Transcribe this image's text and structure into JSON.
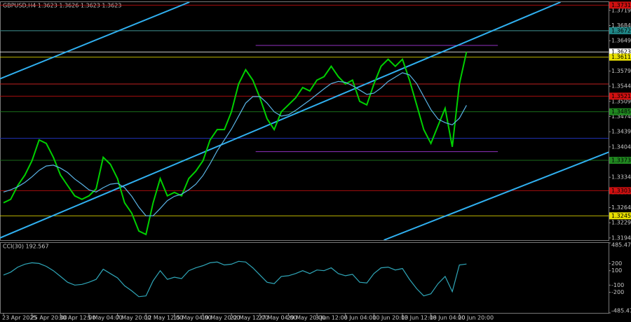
{
  "chart_data": [
    {
      "type": "line",
      "title": "GBPUSD,H4  1.3623 1.3626 1.3623 1.3623",
      "categories": [
        "23 Apr 2025",
        null,
        null,
        null,
        "25 Apr 20:00",
        null,
        null,
        null,
        "30 Apr 12:00",
        null,
        null,
        null,
        "5 May 04:00",
        null,
        null,
        null,
        "7 May 20:00",
        null,
        null,
        null,
        "12 May 12:00",
        null,
        null,
        null,
        "15 May 04:00",
        null,
        null,
        null,
        "19 May 20:00",
        null,
        null,
        null,
        "22 May 12:00",
        null,
        null,
        null,
        "27 May 04:00",
        null,
        null,
        null,
        "29 May 20:00",
        null,
        null,
        null,
        "3 Jun 12:00",
        null,
        null,
        null,
        "6 Jun 04:00",
        null,
        null,
        null,
        "10 Jun 20:00",
        null,
        null,
        null,
        "13 Jun 12:00",
        null,
        null,
        null,
        "18 Jun 04:00",
        null,
        null,
        null,
        "20 Jun 20:00",
        null
      ],
      "series": [
        {
          "name": "GBPUSD",
          "color": "#00d000",
          "values": [
            1.3275,
            1.3283,
            1.3315,
            1.3339,
            1.3372,
            1.342,
            1.3412,
            1.338,
            1.3339,
            1.3315,
            1.3291,
            1.3283,
            1.3291,
            1.3307,
            1.338,
            1.3364,
            1.3331,
            1.3275,
            1.3251,
            1.321,
            1.3202,
            1.3275,
            1.3331,
            1.3291,
            1.3299,
            1.3291,
            1.3331,
            1.3348,
            1.3372,
            1.342,
            1.3444,
            1.3444,
            1.3485,
            1.3549,
            1.3582,
            1.3558,
            1.3517,
            1.3469,
            1.3444,
            1.3485,
            1.3501,
            1.3517,
            1.3541,
            1.3533,
            1.3558,
            1.3566,
            1.359,
            1.3566,
            1.3549,
            1.3558,
            1.3509,
            1.3501,
            1.3549,
            1.359,
            1.3606,
            1.359,
            1.3606,
            1.3558,
            1.3501,
            1.3444,
            1.3412,
            1.3453,
            1.3493,
            1.3404,
            1.3549,
            1.3623
          ]
        },
        {
          "name": "MA",
          "color": "#5ab4e6",
          "values": [
            1.33,
            1.3305,
            1.3312,
            1.3322,
            1.3335,
            1.335,
            1.336,
            1.3362,
            1.3355,
            1.3345,
            1.333,
            1.3318,
            1.3305,
            1.33,
            1.331,
            1.3318,
            1.332,
            1.331,
            1.329,
            1.3265,
            1.3245,
            1.3245,
            1.3262,
            1.328,
            1.329,
            1.3295,
            1.3305,
            1.3318,
            1.3338,
            1.3365,
            1.3395,
            1.342,
            1.3445,
            1.3475,
            1.3505,
            1.352,
            1.352,
            1.3505,
            1.3485,
            1.3475,
            1.3478,
            1.3488,
            1.35,
            1.3512,
            1.3525,
            1.3538,
            1.355,
            1.3555,
            1.3553,
            1.3545,
            1.3535,
            1.3525,
            1.3528,
            1.354,
            1.3555,
            1.3565,
            1.3575,
            1.357,
            1.355,
            1.352,
            1.349,
            1.3468,
            1.346,
            1.3455,
            1.347,
            1.35
          ]
        }
      ],
      "ylim": [
        1.3189,
        1.3738
      ],
      "yticks": [
        1.3719,
        1.3684,
        1.3649,
        1.3614,
        1.3579,
        1.3544,
        1.3509,
        1.3474,
        1.3439,
        1.3404,
        1.3369,
        1.3334,
        1.3299,
        1.3264,
        1.3229,
        1.3194
      ],
      "channel": {
        "color": "#30b0f0",
        "lines": [
          {
            "x": [
              -0.5,
              26.1
            ],
            "y": [
              1.3561,
              1.3738
            ]
          },
          {
            "x": [
              -0.5,
              78.2
            ],
            "y": [
              1.3194,
              1.3738
            ]
          },
          {
            "x": [
              53.4,
              88.1
            ],
            "y": [
              1.3189,
              1.3412
            ]
          }
        ]
      },
      "guides": [
        {
          "value": 1.3672,
          "color": "#707070"
        },
        {
          "value": 1.3638,
          "color": "#9030c0",
          "x": [
            35.4,
            69.4
          ]
        },
        {
          "value": 1.3549,
          "color": "#c02020"
        },
        {
          "value": 1.3424,
          "color": "#2030b0"
        },
        {
          "value": 1.3393,
          "color": "#9030c0",
          "x": [
            35.4,
            69.4
          ]
        }
      ],
      "levels": [
        {
          "value": 1.3731,
          "color": "#d01010"
        },
        {
          "value": 1.3672,
          "color": "#208888"
        },
        {
          "value": 1.3623,
          "color": "#ffffff"
        },
        {
          "value": 1.3611,
          "color": "#e8e000"
        },
        {
          "value": 1.3521,
          "color": "#d01010"
        },
        {
          "value": 1.3485,
          "color": "#208820"
        },
        {
          "value": 1.3373,
          "color": "#208820"
        },
        {
          "value": 1.3303,
          "color": "#d01010"
        },
        {
          "value": 1.3245,
          "color": "#e8e000"
        }
      ]
    },
    {
      "type": "line",
      "title": "CCI(30) 192.567",
      "series": [
        {
          "name": "CCI",
          "color": "#2fa6b8",
          "values": [
            40,
            80,
            150,
            190,
            210,
            200,
            160,
            100,
            20,
            -60,
            -100,
            -90,
            -60,
            -20,
            120,
            60,
            0,
            -110,
            -180,
            -260,
            -250,
            -40,
            100,
            -20,
            10,
            -10,
            100,
            140,
            170,
            210,
            220,
            180,
            190,
            230,
            220,
            140,
            40,
            -60,
            -80,
            20,
            30,
            60,
            100,
            60,
            110,
            100,
            140,
            60,
            30,
            50,
            -60,
            -70,
            60,
            140,
            150,
            110,
            130,
            -20,
            -150,
            -250,
            -220,
            -80,
            20,
            -190,
            180,
            192.567
          ]
        }
      ],
      "ylim": [
        -485.4768,
        485.4768
      ],
      "yticks": [
        485.4768,
        200,
        100,
        -100,
        -200,
        -485.4768
      ]
    }
  ]
}
